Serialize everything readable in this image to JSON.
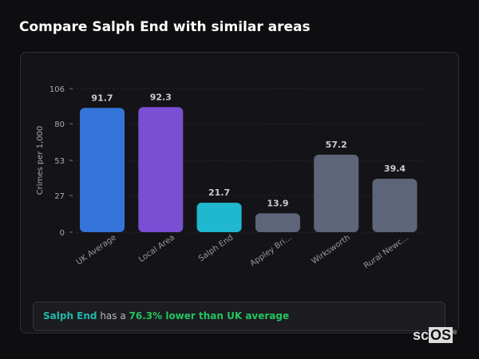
{
  "header": {
    "title": "Compare Salph End with similar areas"
  },
  "chart_data": {
    "type": "bar",
    "categories": [
      "UK Average",
      "Local Area",
      "Salph End",
      "Appley Bri...",
      "Wirksworth",
      "Rural Newc..."
    ],
    "values": [
      91.7,
      92.3,
      21.7,
      13.9,
      57.2,
      39.4
    ],
    "value_labels": [
      "91.7",
      "92.3",
      "21.7",
      "13.9",
      "57.2",
      "39.4"
    ],
    "colors": [
      "#3575d9",
      "#7b4fd4",
      "#1fb8cf",
      "#5d6678",
      "#5d6678",
      "#5d6678"
    ],
    "ylabel": "Crimes per 1,000",
    "yticks": [
      0,
      27,
      53,
      80,
      106
    ],
    "ylim": [
      0,
      106
    ],
    "grid": true
  },
  "summary": {
    "area": "Salph End",
    "middle": " has a ",
    "stat": "76.3% lower than UK average"
  },
  "logo": {
    "text_a": "sc",
    "text_b": "OS",
    "mark": "®"
  }
}
